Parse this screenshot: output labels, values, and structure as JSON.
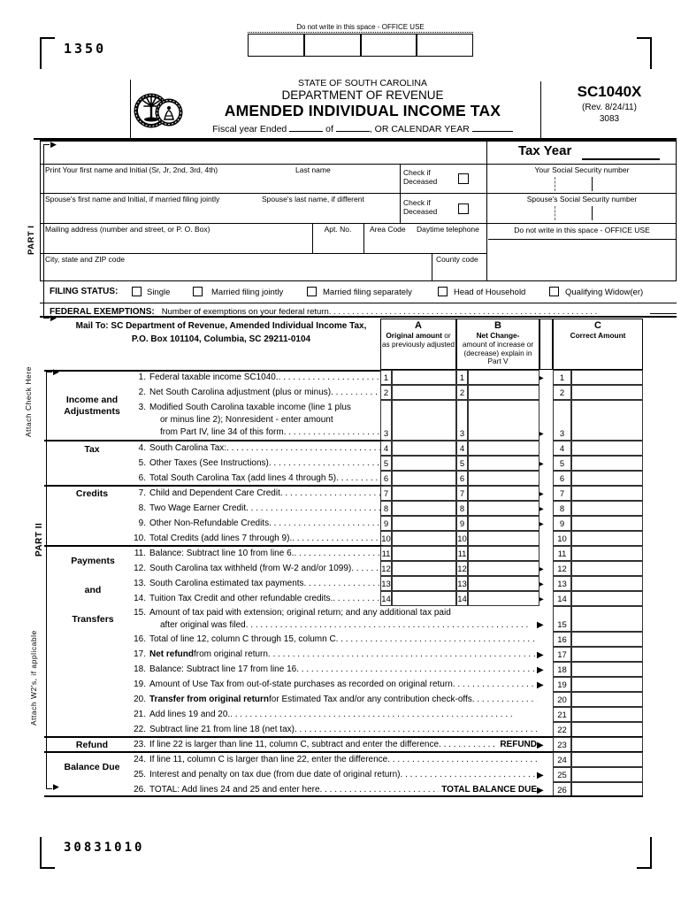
{
  "page": {
    "top_code": "1350",
    "bottom_code": "30831010"
  },
  "office_use_top": {
    "label": "Do not write in this space - OFFICE USE"
  },
  "header": {
    "state": "STATE OF SOUTH CAROLINA",
    "dept": "DEPARTMENT OF REVENUE",
    "title": "AMENDED INDIVIDUAL INCOME TAX",
    "fiscal_pre": "Fiscal year Ended",
    "fiscal_of": "of",
    "fiscal_cal": ", OR CALENDAR YEAR",
    "form_no": "SC1040X",
    "rev": "(Rev. 8/24/11)",
    "code": "3083"
  },
  "part1": {
    "tax_year_label": "Tax Year",
    "first_name_label": "Print Your first name and Initial  (Sr, Jr, 2nd, 3rd, 4th)",
    "last_name_label": "Last name",
    "check_if": "Check if",
    "deceased": "Deceased",
    "your_ssn_label": "Your  Social Security number",
    "spouse_first_label": "Spouse's first name and Initial, if married filing jointly",
    "spouse_last_label": "Spouse's last name, if different",
    "spouse_ssn_label": "Spouse's Social Security number",
    "mailing_label": "Mailing address (number and street, or P. O. Box)",
    "apt_label": "Apt. No.",
    "area_label": "Area Code",
    "phone_label": "Daytime telephone",
    "office_label": "Do not write in this space - OFFICE USE",
    "city_label": "City, state and ZIP code",
    "county_label": "County code"
  },
  "filing_status": {
    "label": "FILING STATUS:",
    "options": [
      "Single",
      "Married filing jointly",
      "Married filing separately",
      "Head of Household",
      "Qualifying  Widow(er)"
    ]
  },
  "federal_exemptions": {
    "label": "FEDERAL EXEMPTIONS:",
    "text": "Number of exemptions on your federal return"
  },
  "mail_to": {
    "line1": "Mail To:  SC Department of Revenue, Amended Individual Income Tax,",
    "line2": "P.O. Box 101104, Columbia, SC 29211-0104"
  },
  "columns": {
    "a_letter": "A",
    "a_bold": "Original amount",
    "a_rest": " or as previously adjusted",
    "b_letter": "B",
    "b_bold": "Net Change-",
    "b_rest": "amount of increase or (decrease) explain in Part V",
    "c_letter": "C",
    "c_bold": "Correct Amount",
    "c_rest": ""
  },
  "side": {
    "part1": "PART I",
    "part2": "PART II",
    "attach_check": "Attach Check Here",
    "attach_w2": "Attach W2's, if applicable"
  },
  "groups": [
    {
      "label": "Income and Adjustments"
    },
    {
      "label": "Tax"
    },
    {
      "label": "Credits"
    },
    {
      "label": "Payments and Transfers"
    },
    {
      "label": "Refund"
    },
    {
      "label": "Balance Due"
    }
  ],
  "lines": [
    {
      "no": "1",
      "segs": [
        {
          "t": "Federal taxable income SC1040."
        }
      ],
      "ab": true,
      "arrow": true
    },
    {
      "no": "2",
      "segs": [
        {
          "t": "Net South Carolina adjustment (plus or minus)"
        }
      ],
      "ab": true
    },
    {
      "no": "3",
      "segs": [
        {
          "t": "Modified South Carolina taxable income (line 1 plus"
        }
      ],
      "cont": [
        "or minus line 2); Nonresident - enter amount",
        "from Part IV, line 34 of this form"
      ],
      "ab": true,
      "arrow": true,
      "h": 46
    },
    {
      "no": "4",
      "segs": [
        {
          "t": "South Carolina Tax:"
        }
      ],
      "ab": true
    },
    {
      "no": "5",
      "segs": [
        {
          "t": "Other Taxes (See Instructions)"
        }
      ],
      "ab": true,
      "arrow": true
    },
    {
      "no": "6",
      "segs": [
        {
          "t": "Total South Carolina Tax (add lines 4 through 5)"
        }
      ],
      "ab": true
    },
    {
      "no": "7",
      "segs": [
        {
          "t": "Child and Dependent Care Credit"
        }
      ],
      "ab": true,
      "arrow": true
    },
    {
      "no": "8",
      "segs": [
        {
          "t": "Two Wage Earner Credit"
        }
      ],
      "ab": true,
      "arrow": true
    },
    {
      "no": "9",
      "segs": [
        {
          "t": "Other Non-Refundable Credits"
        }
      ],
      "ab": true,
      "arrow": true
    },
    {
      "no": "10",
      "segs": [
        {
          "t": "Total Credits (add lines 7 through 9)."
        }
      ],
      "ab": true
    },
    {
      "no": "11",
      "segs": [
        {
          "t": "Balance: Subtract line 10 from line 6."
        }
      ],
      "ab": true
    },
    {
      "no": "12",
      "segs": [
        {
          "t": "South Carolina tax withheld (from W-2 and/or 1099)"
        }
      ],
      "ab": true,
      "arrow": true
    },
    {
      "no": "13",
      "segs": [
        {
          "t": "South Carolina estimated tax payments"
        }
      ],
      "ab": true,
      "arrow": true
    },
    {
      "no": "14",
      "segs": [
        {
          "t": "Tuition Tax Credit and other refundable credits."
        }
      ],
      "ab": true,
      "arrow": true
    },
    {
      "no": "15",
      "segs": [
        {
          "t": "Amount of tax paid with extension; original return; and any additional tax paid"
        }
      ],
      "cont": [
        "after original was filed"
      ],
      "arrow": true,
      "h": 29
    },
    {
      "no": "16",
      "segs": [
        {
          "t": "Total of line 12, column C through 15, column C"
        }
      ]
    },
    {
      "no": "17",
      "segs": [
        {
          "t": "Net refund",
          "b": true
        },
        {
          "t": " from original return"
        }
      ],
      "arrow": true
    },
    {
      "no": "18",
      "segs": [
        {
          "t": "Balance: Subtract line 17 from line 16"
        }
      ],
      "arrow": true
    },
    {
      "no": "19",
      "segs": [
        {
          "t": "Amount of Use Tax from out-of-state purchases as recorded on original return"
        }
      ],
      "arrow": true
    },
    {
      "no": "20",
      "segs": [
        {
          "t": "Transfer from original return",
          "b": true
        },
        {
          "t": " for Estimated Tax and/or any contribution check-offs"
        }
      ]
    },
    {
      "no": "21",
      "segs": [
        {
          "t": "Add lines 19 and 20."
        }
      ]
    },
    {
      "no": "22",
      "segs": [
        {
          "t": "Subtract line 21 from line 18 (net tax)"
        }
      ]
    },
    {
      "no": "23",
      "segs": [
        {
          "t": "If line 22 is larger than line 11, column C, subtract and enter the difference"
        }
      ],
      "tail": "REFUND",
      "arrow": true
    },
    {
      "no": "24",
      "segs": [
        {
          "t": "If line 11, column C is larger than line 22, enter the difference"
        }
      ]
    },
    {
      "no": "25",
      "segs": [
        {
          "t": "Interest and penalty on tax due (from due date of original return)"
        }
      ],
      "arrow": true
    },
    {
      "no": "26",
      "segs": [
        {
          "t": "TOTAL: Add lines 24 and 25 and enter here"
        }
      ],
      "tail": "TOTAL BALANCE DUE",
      "arrow": true
    }
  ]
}
